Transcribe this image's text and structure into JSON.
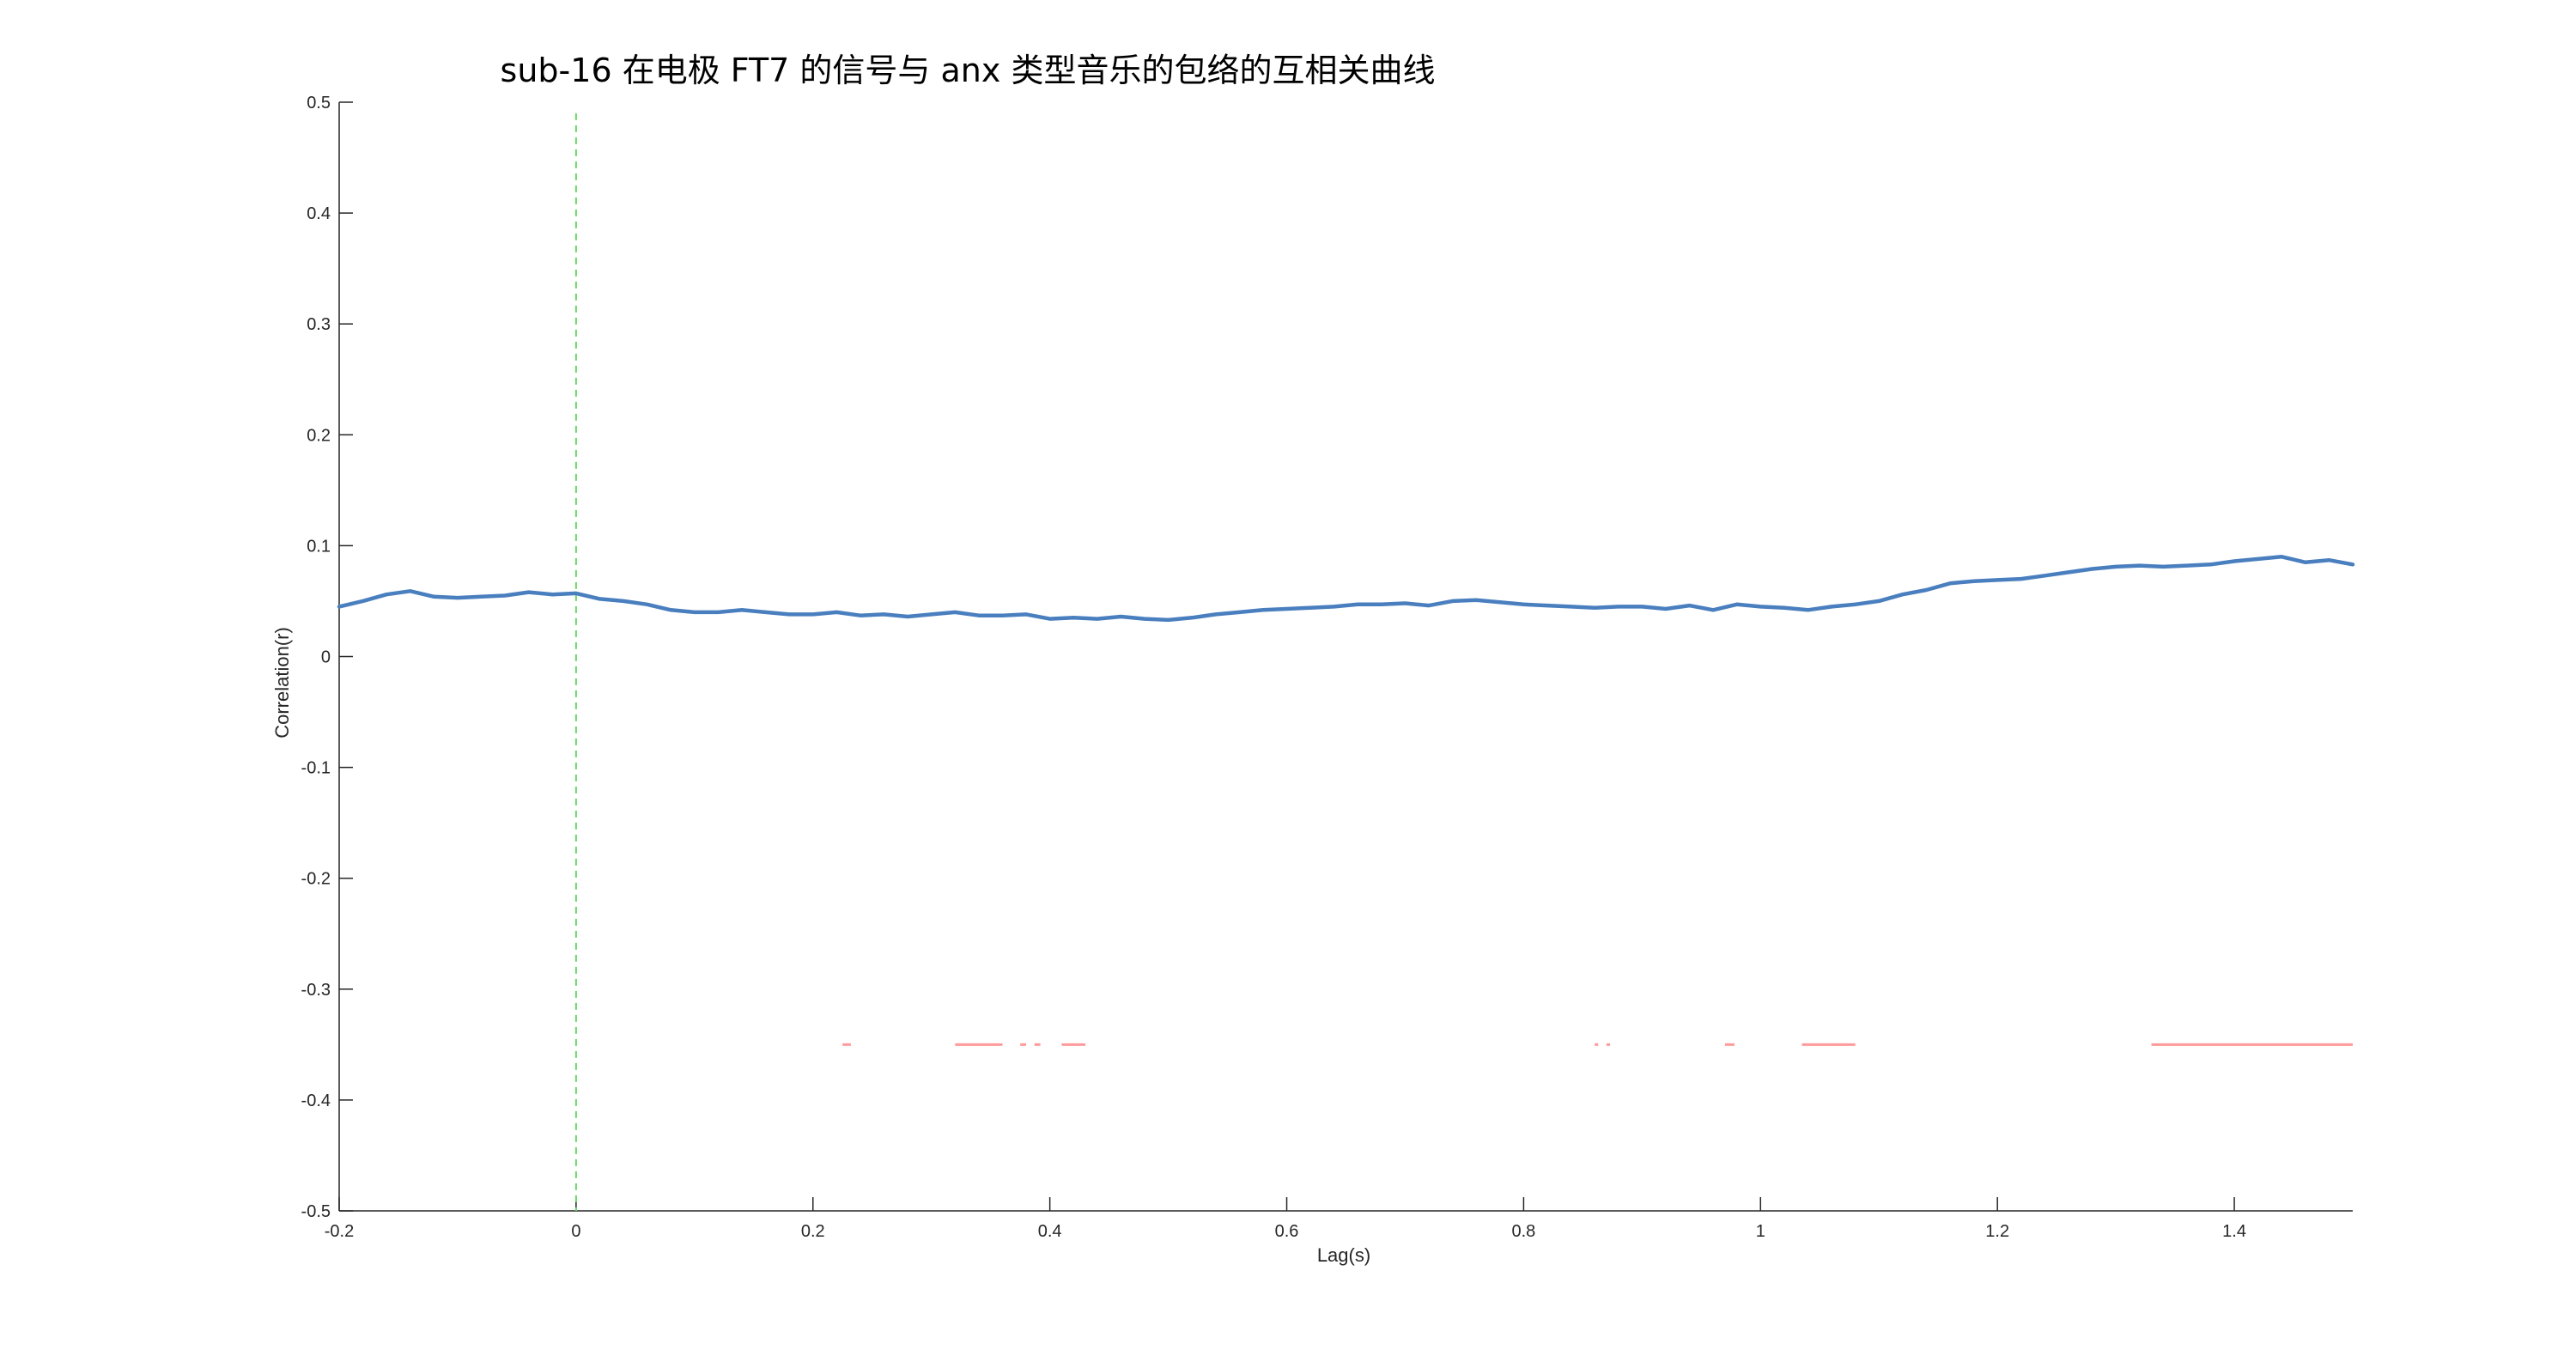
{
  "chart_data": {
    "type": "line",
    "title": "sub-16 在电极 FT7 的信号与 anx 类型音乐的包络的互相关曲线",
    "xlabel": "Lag(s)",
    "ylabel": "Correlation(r)",
    "xlim": [
      -0.2,
      1.5
    ],
    "ylim": [
      -0.5,
      0.5
    ],
    "x_ticks": [
      -0.2,
      0,
      0.2,
      0.4,
      0.6,
      0.8,
      1,
      1.2,
      1.4
    ],
    "x_tick_labels": [
      "-0.2",
      "0",
      "0.2",
      "0.4",
      "0.6",
      "0.8",
      "1",
      "1.2",
      "1.4"
    ],
    "y_ticks": [
      -0.5,
      -0.4,
      -0.3,
      -0.2,
      -0.1,
      0,
      0.1,
      0.2,
      0.3,
      0.4,
      0.5
    ],
    "y_tick_labels": [
      "-0.5",
      "-0.4",
      "-0.3",
      "-0.2",
      "-0.1",
      "0",
      "0.1",
      "0.2",
      "0.3",
      "0.4",
      "0.5"
    ],
    "grid": false,
    "legend": "none",
    "series": [
      {
        "color": "#4a7fbf",
        "x": [
          -0.2,
          -0.18,
          -0.16,
          -0.14,
          -0.12,
          -0.1,
          -0.08,
          -0.06,
          -0.04,
          -0.02,
          0,
          0.02,
          0.04,
          0.06,
          0.08,
          0.1,
          0.12,
          0.14,
          0.16,
          0.18,
          0.2,
          0.22,
          0.24,
          0.26,
          0.28,
          0.3,
          0.32,
          0.34,
          0.36,
          0.38,
          0.4,
          0.42,
          0.44,
          0.46,
          0.48,
          0.5,
          0.52,
          0.54,
          0.56,
          0.58,
          0.6,
          0.62,
          0.64,
          0.66,
          0.68,
          0.7,
          0.72,
          0.74,
          0.76,
          0.78,
          0.8,
          0.82,
          0.84,
          0.86,
          0.88,
          0.9,
          0.92,
          0.94,
          0.96,
          0.98,
          1.0,
          1.02,
          1.04,
          1.06,
          1.08,
          1.1,
          1.12,
          1.14,
          1.16,
          1.18,
          1.2,
          1.22,
          1.24,
          1.26,
          1.28,
          1.3,
          1.32,
          1.34,
          1.36,
          1.38,
          1.4,
          1.42,
          1.44,
          1.46,
          1.48,
          1.5
        ],
        "y": [
          0.045,
          0.05,
          0.056,
          0.059,
          0.054,
          0.053,
          0.054,
          0.055,
          0.058,
          0.056,
          0.057,
          0.052,
          0.05,
          0.047,
          0.042,
          0.04,
          0.04,
          0.042,
          0.04,
          0.038,
          0.038,
          0.04,
          0.037,
          0.038,
          0.036,
          0.038,
          0.04,
          0.037,
          0.037,
          0.038,
          0.034,
          0.035,
          0.034,
          0.036,
          0.034,
          0.033,
          0.035,
          0.038,
          0.04,
          0.042,
          0.043,
          0.044,
          0.045,
          0.047,
          0.047,
          0.048,
          0.046,
          0.05,
          0.051,
          0.049,
          0.047,
          0.046,
          0.045,
          0.044,
          0.045,
          0.045,
          0.043,
          0.046,
          0.042,
          0.047,
          0.045,
          0.044,
          0.042,
          0.045,
          0.047,
          0.05,
          0.056,
          0.06,
          0.066,
          0.068,
          0.069,
          0.07,
          0.073,
          0.076,
          0.079,
          0.081,
          0.082,
          0.081,
          0.082,
          0.083,
          0.086,
          0.088,
          0.09,
          0.085,
          0.087,
          0.083
        ]
      }
    ],
    "reference_line": {
      "x": 0,
      "color": "#66d966",
      "style": "dashed"
    },
    "significance_markers": {
      "y": -0.35,
      "color": "#ff9a9a",
      "segments": [
        [
          0.225,
          0.232
        ],
        [
          0.32,
          0.36
        ],
        [
          0.375,
          0.38
        ],
        [
          0.387,
          0.392
        ],
        [
          0.41,
          0.43
        ],
        [
          0.86,
          0.863
        ],
        [
          0.87,
          0.873
        ],
        [
          0.97,
          0.978
        ],
        [
          1.035,
          1.08
        ],
        [
          1.33,
          1.5
        ]
      ]
    }
  }
}
